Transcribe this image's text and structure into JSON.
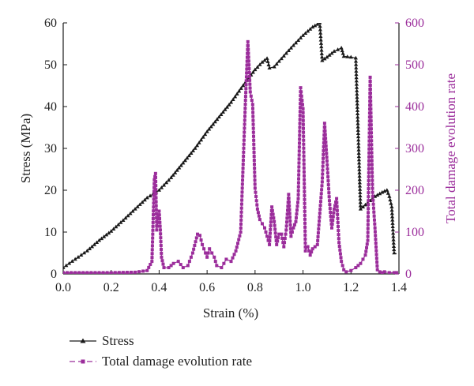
{
  "chart_data": {
    "type": "line",
    "xlabel": "Strain (%)",
    "ylabel": "Stress (MPa)",
    "y2label": "Total damage evolution rate",
    "xlim": [
      0,
      1.4
    ],
    "ylim": [
      0,
      60
    ],
    "y2lim": [
      0,
      600
    ],
    "xticks": [
      "0.0",
      "0.2",
      "0.4",
      "0.6",
      "0.8",
      "1.0",
      "1.2",
      "1.4"
    ],
    "yticks": [
      "0",
      "10",
      "20",
      "30",
      "40",
      "50",
      "60"
    ],
    "y2ticks": [
      "0",
      "100",
      "200",
      "300",
      "400",
      "500",
      "600"
    ],
    "grid": false,
    "legend_position": "bottom-left",
    "colors": {
      "stress": "#1a1a1a",
      "damage": "#9b2d9b"
    },
    "series": [
      {
        "name": "Stress",
        "axis": "left",
        "marker": "triangle",
        "line": "solid",
        "x": [
          0.0,
          0.05,
          0.1,
          0.15,
          0.2,
          0.25,
          0.3,
          0.35,
          0.4,
          0.45,
          0.5,
          0.55,
          0.6,
          0.65,
          0.7,
          0.75,
          0.8,
          0.83,
          0.85,
          0.86,
          0.88,
          0.9,
          0.95,
          1.0,
          1.04,
          1.07,
          1.08,
          1.1,
          1.13,
          1.16,
          1.17,
          1.2,
          1.22,
          1.24,
          1.27,
          1.3,
          1.33,
          1.35,
          1.36,
          1.37,
          1.38,
          1.39
        ],
        "y": [
          1.5,
          3.5,
          5.5,
          8.0,
          10.2,
          12.8,
          15.5,
          18.2,
          20.0,
          23.0,
          26.5,
          30.0,
          34.0,
          37.5,
          41.0,
          45.0,
          48.8,
          50.6,
          51.5,
          49.2,
          49.5,
          50.8,
          54.0,
          57.0,
          59.0,
          60.0,
          51.0,
          51.8,
          53.2,
          54.0,
          52.0,
          51.8,
          51.6,
          15.5,
          17.0,
          18.5,
          19.5,
          20.0,
          18.5,
          16.0,
          5.0,
          4.8
        ]
      },
      {
        "name": "Total damage evolution rate",
        "axis": "right",
        "marker": "square",
        "line": "dashed",
        "x": [
          0.0,
          0.1,
          0.2,
          0.3,
          0.35,
          0.37,
          0.38,
          0.385,
          0.39,
          0.4,
          0.405,
          0.41,
          0.42,
          0.44,
          0.46,
          0.48,
          0.5,
          0.52,
          0.54,
          0.56,
          0.57,
          0.58,
          0.6,
          0.61,
          0.62,
          0.63,
          0.64,
          0.66,
          0.68,
          0.7,
          0.72,
          0.74,
          0.76,
          0.77,
          0.78,
          0.79,
          0.8,
          0.81,
          0.82,
          0.84,
          0.86,
          0.87,
          0.88,
          0.89,
          0.9,
          0.91,
          0.92,
          0.93,
          0.94,
          0.95,
          0.96,
          0.97,
          0.98,
          0.99,
          1.0,
          1.01,
          1.02,
          1.03,
          1.04,
          1.06,
          1.08,
          1.09,
          1.1,
          1.11,
          1.12,
          1.13,
          1.14,
          1.15,
          1.16,
          1.17,
          1.18,
          1.2,
          1.22,
          1.24,
          1.26,
          1.27,
          1.28,
          1.29,
          1.3,
          1.31,
          1.32,
          1.33,
          1.34,
          1.36,
          1.38,
          1.39
        ],
        "y": [
          3,
          3,
          3,
          4,
          8,
          30,
          225,
          240,
          105,
          150,
          105,
          40,
          15,
          15,
          25,
          30,
          15,
          20,
          50,
          95,
          92,
          70,
          40,
          60,
          50,
          40,
          20,
          15,
          35,
          30,
          55,
          100,
          415,
          555,
          435,
          405,
          205,
          155,
          130,
          110,
          70,
          160,
          125,
          70,
          95,
          95,
          65,
          105,
          190,
          90,
          110,
          125,
          180,
          445,
          395,
          55,
          65,
          45,
          60,
          70,
          220,
          360,
          270,
          175,
          110,
          155,
          180,
          75,
          30,
          10,
          5,
          8,
          15,
          25,
          45,
          80,
          470,
          195,
          110,
          10,
          5,
          3,
          5,
          3,
          3,
          3
        ]
      }
    ]
  }
}
